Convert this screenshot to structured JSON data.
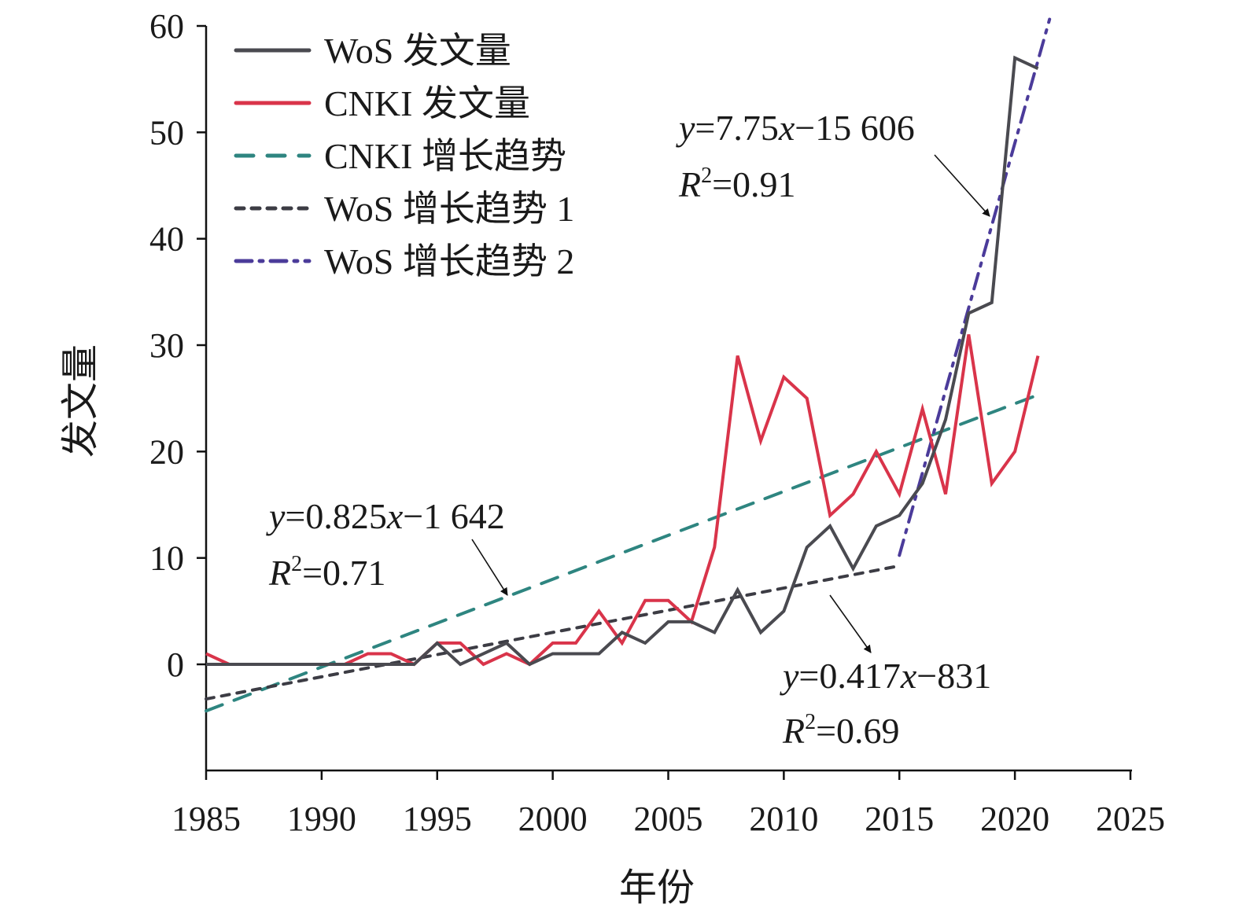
{
  "chart_data": {
    "type": "line",
    "title": "",
    "xlabel": "年份",
    "ylabel": "发文量",
    "xlim": [
      1985,
      2025
    ],
    "ylim": [
      -10,
      60
    ],
    "x_ticks": [
      "1985",
      "1990",
      "1995",
      "2000",
      "2005",
      "2010",
      "2015",
      "2020",
      "2025"
    ],
    "y_ticks": [
      "0",
      "10",
      "20",
      "30",
      "40",
      "50",
      "60"
    ],
    "legend_position": "top-left",
    "x": [
      1985,
      1986,
      1987,
      1988,
      1989,
      1990,
      1991,
      1992,
      1993,
      1994,
      1995,
      1996,
      1997,
      1998,
      1999,
      2000,
      2001,
      2002,
      2003,
      2004,
      2005,
      2006,
      2007,
      2008,
      2009,
      2010,
      2011,
      2012,
      2013,
      2014,
      2015,
      2016,
      2017,
      2018,
      2019,
      2020,
      2021
    ],
    "series": [
      {
        "name": "WoS 发文量",
        "color": "#4a4a50",
        "style": "solid",
        "values": [
          0,
          0,
          0,
          0,
          0,
          0,
          0,
          0,
          0,
          0,
          2,
          0,
          1,
          2,
          0,
          1,
          1,
          1,
          3,
          2,
          4,
          4,
          3,
          7,
          3,
          5,
          11,
          13,
          9,
          13,
          14,
          17,
          23,
          33,
          34,
          57,
          56
        ]
      },
      {
        "name": "CNKI 发文量",
        "color": "#d9344a",
        "style": "solid",
        "values": [
          1,
          0,
          0,
          0,
          0,
          0,
          0,
          1,
          1,
          0,
          2,
          2,
          0,
          1,
          0,
          2,
          2,
          5,
          2,
          6,
          6,
          4,
          11,
          29,
          21,
          27,
          25,
          14,
          16,
          20,
          16,
          24,
          16,
          31,
          17,
          20,
          29
        ]
      }
    ],
    "trendlines": [
      {
        "name": "CNKI 增长趋势",
        "color": "#2e8580",
        "style": "dashed",
        "slope": 0.825,
        "intercept": -1642,
        "x_range": [
          1985,
          2021
        ],
        "equation": "y=0.825x−1 642",
        "r2": "R²=0.71"
      },
      {
        "name": "WoS 增长趋势 1",
        "color": "#3c3c44",
        "style": "dotted",
        "slope": 0.417,
        "intercept": -831,
        "x_range": [
          1985,
          2015
        ],
        "equation": "y=0.417x−831",
        "r2": "R²=0.69"
      },
      {
        "name": "WoS 增长趋势 2",
        "color": "#4b3b9a",
        "style": "dashdot",
        "slope": 7.75,
        "intercept": -15606,
        "x_range": [
          2015,
          2021.5
        ],
        "equation": "y=7.75x−15 606",
        "r2": "R²=0.91"
      }
    ],
    "legend": [
      "WoS 发文量",
      "CNKI 发文量",
      "CNKI 增长趋势",
      "WoS 增长趋势 1",
      "WoS 增长趋势 2"
    ],
    "annotations": {
      "cnki": {
        "eq_prefix": "y",
        "eq_body": "=0.825",
        "eq_x": "x",
        "eq_rest": "−1 642",
        "r_label": "R",
        "r_sup": "2",
        "r_val": "=0.71"
      },
      "wos1": {
        "eq_prefix": "y",
        "eq_body": "=0.417",
        "eq_x": "x",
        "eq_rest": "−831",
        "r_label": "R",
        "r_sup": "2",
        "r_val": "=0.69"
      },
      "wos2": {
        "eq_prefix": "y",
        "eq_body": "=7.75",
        "eq_x": "x",
        "eq_rest": "−15 606",
        "r_label": "R",
        "r_sup": "2",
        "r_val": "=0.91"
      }
    }
  }
}
